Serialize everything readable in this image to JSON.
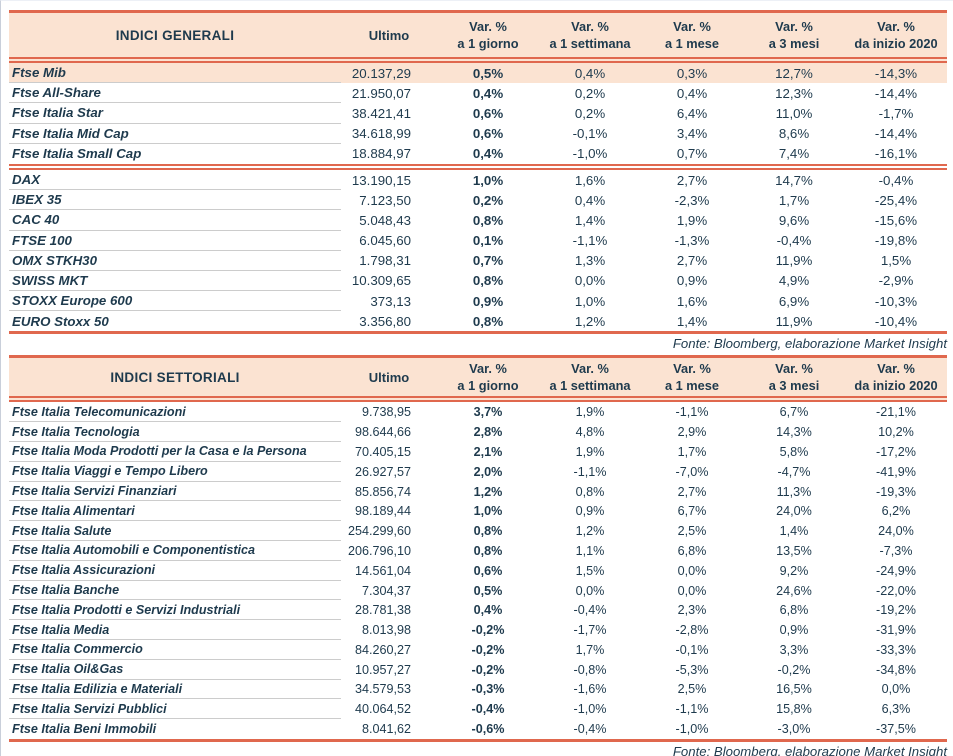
{
  "source_note": "Fonte: Bloomberg, elaborazione Market Insight",
  "colors": {
    "accent_coral": "#e0684e",
    "header_bg": "#fbe3d2",
    "highlight_row_bg": "#fbe3d2",
    "text_navy": "#1e3a4d",
    "row_divider_gray": "#cccccc"
  },
  "tables": [
    {
      "title": "INDICI GENERALI",
      "columns": [
        "Ultimo",
        {
          "l1": "Var. %",
          "l2": "a 1 giorno"
        },
        {
          "l1": "Var. %",
          "l2": "a 1 settimana"
        },
        {
          "l1": "Var. %",
          "l2": "a 1 mese"
        },
        {
          "l1": "Var. %",
          "l2": "a 3 mesi"
        },
        {
          "l1": "Var. %",
          "l2": "da inizio 2020"
        }
      ],
      "sections": [
        {
          "rows": [
            {
              "label": "Ftse Mib",
              "highlight": true,
              "values": [
                "20.137,29",
                "0,5%",
                "0,4%",
                "0,3%",
                "12,7%",
                "-14,3%"
              ]
            },
            {
              "label": "Ftse All-Share",
              "values": [
                "21.950,07",
                "0,4%",
                "0,2%",
                "0,4%",
                "12,3%",
                "-14,4%"
              ]
            },
            {
              "label": "Ftse Italia Star",
              "values": [
                "38.421,41",
                "0,6%",
                "0,2%",
                "6,4%",
                "11,0%",
                "-1,7%"
              ]
            },
            {
              "label": "Ftse Italia Mid Cap",
              "values": [
                "34.618,99",
                "0,6%",
                "-0,1%",
                "3,4%",
                "8,6%",
                "-14,4%"
              ]
            },
            {
              "label": "Ftse Italia Small Cap",
              "values": [
                "18.884,97",
                "0,4%",
                "-1,0%",
                "0,7%",
                "7,4%",
                "-16,1%"
              ]
            }
          ]
        },
        {
          "rows": [
            {
              "label": "DAX",
              "values": [
                "13.190,15",
                "1,0%",
                "1,6%",
                "2,7%",
                "14,7%",
                "-0,4%"
              ]
            },
            {
              "label": "IBEX 35",
              "values": [
                "7.123,50",
                "0,2%",
                "0,4%",
                "-2,3%",
                "1,7%",
                "-25,4%"
              ]
            },
            {
              "label": "CAC 40",
              "values": [
                "5.048,43",
                "0,8%",
                "1,4%",
                "1,9%",
                "9,6%",
                "-15,6%"
              ]
            },
            {
              "label": "FTSE 100",
              "values": [
                "6.045,60",
                "0,1%",
                "-1,1%",
                "-1,3%",
                "-0,4%",
                "-19,8%"
              ]
            },
            {
              "label": "OMX STKH30",
              "values": [
                "1.798,31",
                "0,7%",
                "1,3%",
                "2,7%",
                "11,9%",
                "1,5%"
              ]
            },
            {
              "label": "SWISS MKT",
              "values": [
                "10.309,65",
                "0,8%",
                "0,0%",
                "0,9%",
                "4,9%",
                "-2,9%"
              ]
            },
            {
              "label": "STOXX Europe 600",
              "values": [
                "373,13",
                "0,9%",
                "1,0%",
                "1,6%",
                "6,9%",
                "-10,3%"
              ]
            },
            {
              "label": "EURO Stoxx 50",
              "values": [
                "3.356,80",
                "0,8%",
                "1,2%",
                "1,4%",
                "11,9%",
                "-10,4%"
              ]
            }
          ]
        }
      ]
    },
    {
      "title": "INDICI SETTORIALI",
      "columns": [
        "Ultimo",
        {
          "l1": "Var. %",
          "l2": "a 1 giorno"
        },
        {
          "l1": "Var. %",
          "l2": "a 1 settimana"
        },
        {
          "l1": "Var. %",
          "l2": "a 1 mese"
        },
        {
          "l1": "Var. %",
          "l2": "a 3 mesi"
        },
        {
          "l1": "Var. %",
          "l2": "da inizio 2020"
        }
      ],
      "sections": [
        {
          "rows": [
            {
              "label": "Ftse Italia Telecomunicazioni",
              "values": [
                "9.738,95",
                "3,7%",
                "1,9%",
                "-1,1%",
                "6,7%",
                "-21,1%"
              ]
            },
            {
              "label": "Ftse Italia Tecnologia",
              "values": [
                "98.644,66",
                "2,8%",
                "4,8%",
                "2,9%",
                "14,3%",
                "10,2%"
              ]
            },
            {
              "label": "Ftse Italia Moda Prodotti per la Casa e la Persona",
              "values": [
                "70.405,15",
                "2,1%",
                "1,9%",
                "1,7%",
                "5,8%",
                "-17,2%"
              ]
            },
            {
              "label": "Ftse Italia Viaggi e Tempo Libero",
              "values": [
                "26.927,57",
                "2,0%",
                "-1,1%",
                "-7,0%",
                "-4,7%",
                "-41,9%"
              ]
            },
            {
              "label": "Ftse Italia Servizi Finanziari",
              "values": [
                "85.856,74",
                "1,2%",
                "0,8%",
                "2,7%",
                "11,3%",
                "-19,3%"
              ]
            },
            {
              "label": "Ftse Italia Alimentari",
              "values": [
                "98.189,44",
                "1,0%",
                "0,9%",
                "6,7%",
                "24,0%",
                "6,2%"
              ]
            },
            {
              "label": "Ftse Italia Salute",
              "values": [
                "254.299,60",
                "0,8%",
                "1,2%",
                "2,5%",
                "1,4%",
                "24,0%"
              ]
            },
            {
              "label": "Ftse Italia Automobili e Componentistica",
              "values": [
                "206.796,10",
                "0,8%",
                "1,1%",
                "6,8%",
                "13,5%",
                "-7,3%"
              ]
            },
            {
              "label": "Ftse Italia Assicurazioni",
              "values": [
                "14.561,04",
                "0,6%",
                "1,5%",
                "0,0%",
                "9,2%",
                "-24,9%"
              ]
            },
            {
              "label": "Ftse Italia Banche",
              "values": [
                "7.304,37",
                "0,5%",
                "0,0%",
                "0,0%",
                "24,6%",
                "-22,0%"
              ]
            },
            {
              "label": "Ftse Italia Prodotti e Servizi Industriali",
              "values": [
                "28.781,38",
                "0,4%",
                "-0,4%",
                "2,3%",
                "6,8%",
                "-19,2%"
              ]
            },
            {
              "label": "Ftse Italia Media",
              "values": [
                "8.013,98",
                "-0,2%",
                "-1,7%",
                "-2,8%",
                "0,9%",
                "-31,9%"
              ]
            },
            {
              "label": "Ftse Italia Commercio",
              "values": [
                "84.260,27",
                "-0,2%",
                "1,7%",
                "-0,1%",
                "3,3%",
                "-33,3%"
              ]
            },
            {
              "label": "Ftse Italia Oil&Gas",
              "values": [
                "10.957,27",
                "-0,2%",
                "-0,8%",
                "-5,3%",
                "-0,2%",
                "-34,8%"
              ]
            },
            {
              "label": "Ftse Italia Edilizia e Materiali",
              "values": [
                "34.579,53",
                "-0,3%",
                "-1,6%",
                "2,5%",
                "16,5%",
                "0,0%"
              ]
            },
            {
              "label": "Ftse Italia Servizi Pubblici",
              "values": [
                "40.064,52",
                "-0,4%",
                "-1,0%",
                "-1,1%",
                "15,8%",
                "6,3%"
              ]
            },
            {
              "label": "Ftse Italia Beni Immobili",
              "values": [
                "8.041,62",
                "-0,6%",
                "-0,4%",
                "-1,0%",
                "-3,0%",
                "-37,5%"
              ]
            }
          ]
        }
      ]
    }
  ]
}
